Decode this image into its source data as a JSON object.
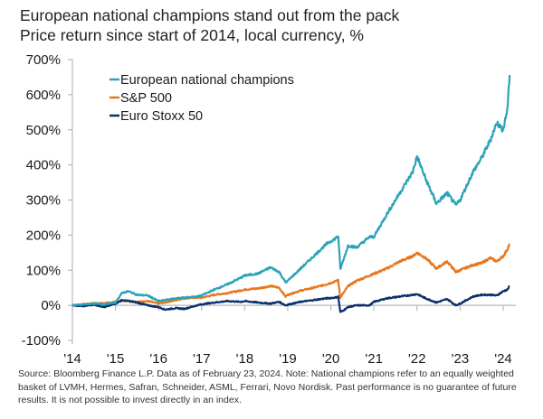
{
  "header": {
    "title": "European national champions stand out from the pack",
    "subtitle": "Price return since start of 2014, local currency, %"
  },
  "footer": {
    "note": "Source: Bloomberg Finance L.P. Data as of February 23, 2024. Note: National champions refer to an equally weighted basket of LVMH, Hermes, Safran, Schneider, ASML, Ferrari, Novo Nordisk. Past performance is no guarantee of future results. It is not possible to invest directly in an index."
  },
  "chart_data": {
    "type": "line",
    "title": "European national champions stand out from the pack",
    "subtitle": "Price return since start of 2014, local currency, %",
    "xlabel": "",
    "ylabel": "",
    "xlim": [
      2014.0,
      2024.15
    ],
    "ylim": [
      -100,
      700
    ],
    "x_ticks": [
      2014,
      2015,
      2016,
      2017,
      2018,
      2019,
      2020,
      2021,
      2022,
      2023,
      2024
    ],
    "x_tick_labels": [
      "'14",
      "'15",
      "'16",
      "'17",
      "'18",
      "'19",
      "'20",
      "'21",
      "'22",
      "'23",
      "'24"
    ],
    "y_ticks": [
      -100,
      0,
      100,
      200,
      300,
      400,
      500,
      600,
      700
    ],
    "y_tick_labels": [
      "-100%",
      "0%",
      "100%",
      "200%",
      "300%",
      "400%",
      "500%",
      "600%",
      "700%"
    ],
    "grid": false,
    "legend_position": "top-left",
    "x": [
      2014.0,
      2014.25,
      2014.5,
      2014.75,
      2015.0,
      2015.15,
      2015.3,
      2015.5,
      2015.75,
      2016.0,
      2016.15,
      2016.4,
      2016.6,
      2016.9,
      2017.0,
      2017.3,
      2017.6,
      2017.9,
      2018.0,
      2018.3,
      2018.6,
      2018.8,
      2018.95,
      2019.0,
      2019.3,
      2019.6,
      2019.9,
      2020.1,
      2020.17,
      2020.22,
      2020.4,
      2020.6,
      2020.9,
      2021.0,
      2021.3,
      2021.6,
      2021.9,
      2022.0,
      2022.2,
      2022.45,
      2022.7,
      2022.9,
      2023.0,
      2023.3,
      2023.5,
      2023.7,
      2023.85,
      2024.0,
      2024.1,
      2024.15
    ],
    "series": [
      {
        "name": "European national champions",
        "color": "#2ba3b8",
        "values": [
          0,
          2,
          5,
          3,
          8,
          35,
          40,
          30,
          28,
          12,
          15,
          20,
          22,
          25,
          28,
          45,
          60,
          78,
          85,
          90,
          108,
          95,
          65,
          70,
          105,
          140,
          175,
          190,
          198,
          103,
          170,
          165,
          195,
          195,
          260,
          320,
          380,
          425,
          360,
          290,
          320,
          285,
          300,
          380,
          420,
          470,
          520,
          500,
          560,
          656
        ]
      },
      {
        "name": "S&P 500",
        "color": "#e8761d",
        "values": [
          0,
          3,
          6,
          6,
          10,
          12,
          14,
          10,
          12,
          5,
          8,
          15,
          20,
          22,
          22,
          30,
          35,
          42,
          45,
          48,
          55,
          50,
          25,
          30,
          42,
          50,
          60,
          68,
          72,
          22,
          55,
          70,
          85,
          90,
          105,
          125,
          140,
          150,
          135,
          105,
          125,
          95,
          100,
          115,
          120,
          135,
          125,
          140,
          160,
          175
        ]
      },
      {
        "name": "Euro Stoxx 50",
        "color": "#0b2e6d",
        "values": [
          0,
          -2,
          2,
          -5,
          5,
          15,
          12,
          8,
          0,
          -5,
          -12,
          -8,
          -10,
          0,
          3,
          8,
          12,
          10,
          12,
          8,
          5,
          10,
          0,
          2,
          10,
          15,
          20,
          22,
          25,
          -20,
          -5,
          0,
          0,
          10,
          20,
          25,
          30,
          32,
          20,
          8,
          18,
          0,
          5,
          25,
          30,
          30,
          28,
          40,
          45,
          55
        ]
      }
    ]
  }
}
